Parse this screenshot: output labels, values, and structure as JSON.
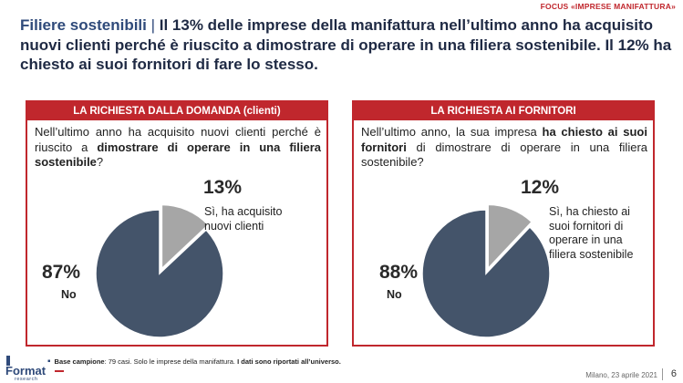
{
  "header": {
    "focus_label": "FOCUS «IMPRESE MANIFATTURA»",
    "headline_keyword": "Filiere sostenibili",
    "headline_separator": "|",
    "headline_text": "Il 13% delle imprese della manifattura nell’ultimo anno ha acquisito nuovi clienti perché è riuscito a dimostrare di operare in una filiera sostenibile. Il 12% ha chiesto ai suoi fornitori di fare lo stesso."
  },
  "left_panel": {
    "title": "LA RICHIESTA DALLA DOMANDA (clienti)",
    "question_part1": "Nell’ultimo anno ha acquisito nuovi clienti perché è riuscito a ",
    "question_bold": "dimostrare di operare in una filiera sostenibile",
    "question_part2": "?"
  },
  "right_panel": {
    "title": "LA RICHIESTA AI FORNITORI",
    "question_part1": "Nell’ultimo anno, la sua impresa ",
    "question_bold": "ha chiesto ai suoi fornitori",
    "question_part2": " di dimostrare di operare in una filiera sostenibile?"
  },
  "chart_data": [
    {
      "type": "pie",
      "slices": [
        {
          "label": "Sì, ha acquisito nuovi clienti",
          "value": 13,
          "display": "13%"
        },
        {
          "label": "No",
          "value": 87,
          "display": "87%"
        }
      ],
      "colors": {
        "si": "#a6a6a6",
        "no": "#44546a"
      }
    },
    {
      "type": "pie",
      "slices": [
        {
          "label": "Sì, ha chiesto ai suoi fornitori di operare in una filiera sostenibile",
          "value": 12,
          "display": "12%"
        },
        {
          "label": "No",
          "value": 88,
          "display": "88%"
        }
      ],
      "colors": {
        "si": "#a6a6a6",
        "no": "#44546a"
      }
    }
  ],
  "footer": {
    "base_label": "Base campione",
    "base_text": ": 79 casi. Solo le imprese della manifattura. ",
    "base_bold": "I dati sono riportati all’universo.",
    "date": "Milano, 23 aprile 2021",
    "page": "6",
    "logo": "Format",
    "logo_sub": "research"
  },
  "colors": {
    "accent": "#c0272d",
    "navy": "#44546a",
    "grey": "#a6a6a6",
    "title": "#1f2a44"
  }
}
